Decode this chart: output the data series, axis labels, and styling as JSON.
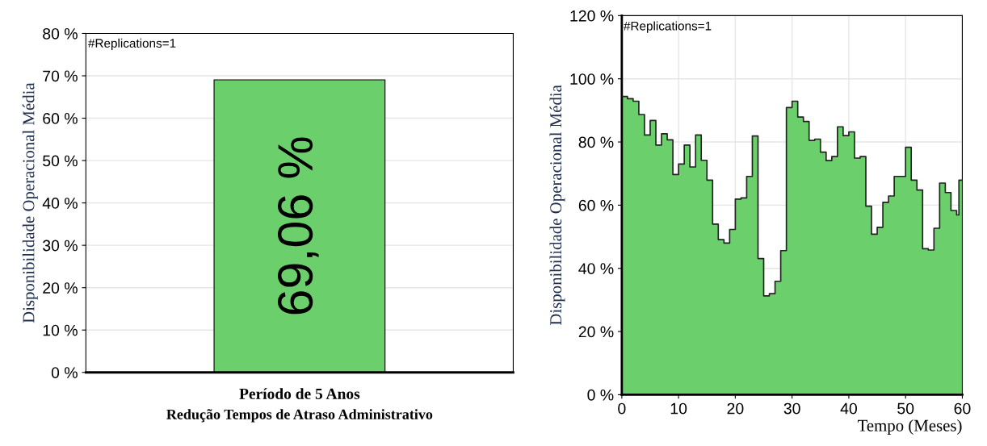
{
  "chart_data": [
    {
      "type": "bar",
      "categories": [
        "Período de 5 Anos"
      ],
      "xlabel": "Redução Tempos de Atraso Administrativo",
      "ylabel": "Disponibilidade Operacional Média",
      "values": [
        69.06
      ],
      "color": "#6bd06b",
      "value_labels": [
        "69,06 %"
      ],
      "ylim": [
        0,
        80
      ],
      "yticks": [
        {
          "value": 0,
          "label": "0 %"
        },
        {
          "value": 10,
          "label": "10 %"
        },
        {
          "value": 20,
          "label": "20 %"
        },
        {
          "value": 30,
          "label": "30 %"
        },
        {
          "value": 40,
          "label": "40 %"
        },
        {
          "value": 50,
          "label": "50 %"
        },
        {
          "value": 60,
          "label": "60 %"
        },
        {
          "value": 70,
          "label": "70 %"
        },
        {
          "value": 80,
          "label": "80 %"
        }
      ],
      "grid": "y",
      "annotations": [
        "#Replications=1"
      ]
    },
    {
      "type": "step",
      "xlabel": "Tempo (Meses)",
      "ylabel": "Disponibilidade Operacional Média",
      "x": [
        0,
        1,
        2,
        3,
        4,
        5,
        6,
        7,
        8,
        9,
        10,
        11,
        12,
        13,
        14,
        15,
        16,
        17,
        18,
        19,
        20,
        21,
        22,
        23,
        24,
        25,
        26,
        27,
        28,
        29,
        30,
        31,
        32,
        33,
        34,
        35,
        36,
        37,
        38,
        39,
        40,
        41,
        42,
        43,
        44,
        45,
        46,
        47,
        48,
        49,
        50,
        51,
        52,
        53,
        54,
        55,
        56,
        57,
        58,
        59,
        59.4,
        60
      ],
      "series": [
        {
          "type": "area",
          "color": "#6bd06b",
          "values": [
            94.4,
            93.7,
            92.9,
            88.7,
            82.2,
            86.8,
            79.0,
            82.6,
            80.7,
            69.7,
            73.0,
            79.0,
            72.1,
            82.2,
            74.2,
            67.9,
            54.0,
            49.1,
            48.0,
            52.3,
            61.9,
            62.3,
            69.1,
            81.9,
            43.1,
            31.3,
            32.0,
            35.9,
            45.6,
            90.9,
            92.9,
            87.9,
            86.5,
            80.5,
            80.9,
            76.8,
            74.1,
            75.4,
            84.8,
            82.0,
            83.2,
            74.9,
            75.4,
            59.7,
            50.8,
            53.0,
            60.9,
            62.9,
            69.1,
            69.1,
            78.3,
            67.9,
            64.8,
            46.2,
            45.8,
            52.7,
            67.0,
            64.0,
            58.3,
            56.9,
            67.9,
            67.9
          ]
        },
        {
          "type": "step",
          "color": "#222222",
          "values": [
            94.4,
            93.7,
            92.9,
            88.7,
            82.2,
            86.8,
            79.0,
            82.6,
            80.7,
            69.7,
            73.0,
            79.0,
            72.1,
            82.2,
            74.2,
            67.9,
            54.0,
            49.1,
            48.0,
            52.3,
            61.9,
            62.3,
            69.1,
            81.9,
            43.1,
            31.3,
            32.0,
            35.9,
            45.6,
            90.9,
            92.9,
            87.9,
            86.5,
            80.5,
            80.9,
            76.8,
            74.1,
            75.4,
            84.8,
            82.0,
            83.2,
            74.9,
            75.4,
            59.7,
            50.8,
            53.0,
            60.9,
            62.9,
            69.1,
            69.1,
            78.3,
            67.9,
            64.8,
            46.2,
            45.8,
            52.7,
            67.0,
            64.0,
            58.3,
            56.9,
            67.9,
            67.9
          ]
        }
      ],
      "xlim": [
        0,
        60
      ],
      "xticks": [
        0,
        10,
        20,
        30,
        40,
        50,
        60
      ],
      "ylim": [
        0,
        120
      ],
      "yticks": [
        {
          "value": 0,
          "label": "0 %"
        },
        {
          "value": 20,
          "label": "20 %"
        },
        {
          "value": 40,
          "label": "40 %"
        },
        {
          "value": 60,
          "label": "60 %"
        },
        {
          "value": 80,
          "label": "80 %"
        },
        {
          "value": 100,
          "label": "100 %"
        },
        {
          "value": 120,
          "label": "120 %"
        }
      ],
      "grid": true,
      "annotations": [
        "#Replications=1"
      ]
    }
  ]
}
